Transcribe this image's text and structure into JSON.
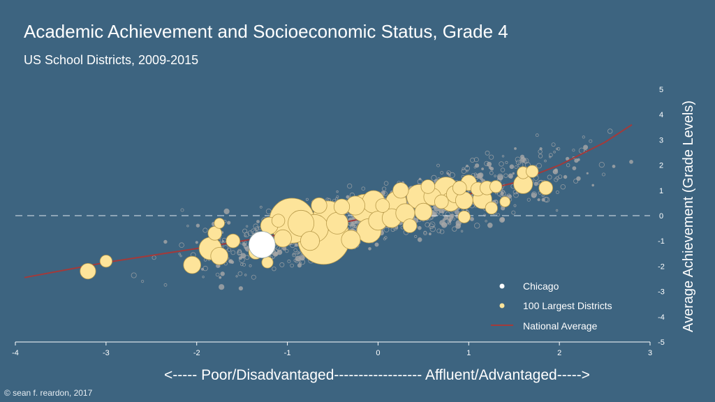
{
  "chart_data": {
    "type": "scatter",
    "title": "Academic Achievement and Socioeconomic Status, Grade 4",
    "subtitle": "US School Districts, 2009-2015",
    "xlabel": "<----- Poor/Disadvantaged------------------ Affluent/Advantaged----->",
    "ylabel": "Average Achievement (Grade Levels)",
    "xlim": [
      -4,
      3
    ],
    "ylim": [
      -5,
      5
    ],
    "x_ticks": [
      -4,
      -3,
      -2,
      -1,
      0,
      1,
      2,
      3
    ],
    "y_ticks": [
      5,
      4,
      3,
      2,
      1,
      0,
      -1,
      -2,
      -3,
      -4,
      -5
    ],
    "reference_line_y": 0,
    "legend_position": "bottom-right",
    "colors": {
      "background": "#3d6480",
      "all_districts": "#a8a8a8",
      "largest_districts": "#fde49a",
      "chicago": "#ffffff",
      "national_average": "#a33a3a"
    },
    "series": [
      {
        "name": "Chicago",
        "points": [
          {
            "x": -1.28,
            "y": -1.15,
            "size": 5
          }
        ]
      },
      {
        "name": "100 Largest Districts",
        "points": [
          {
            "x": -3.2,
            "y": -2.2,
            "size": 1.8
          },
          {
            "x": -3.0,
            "y": -1.8,
            "size": 1.4
          },
          {
            "x": -2.05,
            "y": -1.95,
            "size": 2.0
          },
          {
            "x": -1.85,
            "y": -1.3,
            "size": 2.6
          },
          {
            "x": -1.8,
            "y": -0.7,
            "size": 1.6
          },
          {
            "x": -1.75,
            "y": -1.6,
            "size": 2.0
          },
          {
            "x": -1.6,
            "y": -1.0,
            "size": 1.6
          },
          {
            "x": -1.75,
            "y": -0.3,
            "size": 1.2
          },
          {
            "x": -1.35,
            "y": -1.45,
            "size": 1.6
          },
          {
            "x": -1.2,
            "y": -0.4,
            "size": 2.0
          },
          {
            "x": -1.22,
            "y": -1.85,
            "size": 1.3
          },
          {
            "x": -1.05,
            "y": -0.9,
            "size": 2.0
          },
          {
            "x": -1.1,
            "y": -0.2,
            "size": 1.5
          },
          {
            "x": -0.95,
            "y": -0.2,
            "size": 5.2
          },
          {
            "x": -0.85,
            "y": -0.3,
            "size": 3.0
          },
          {
            "x": -0.75,
            "y": -1.0,
            "size": 2.2
          },
          {
            "x": -0.7,
            "y": -0.5,
            "size": 3.2
          },
          {
            "x": -0.6,
            "y": -0.9,
            "size": 6.0
          },
          {
            "x": -0.55,
            "y": 0.0,
            "size": 3.4
          },
          {
            "x": -0.45,
            "y": -0.3,
            "size": 2.5
          },
          {
            "x": -0.4,
            "y": 0.35,
            "size": 1.8
          },
          {
            "x": -0.3,
            "y": -0.95,
            "size": 2.2
          },
          {
            "x": -0.25,
            "y": 0.4,
            "size": 2.2
          },
          {
            "x": -0.15,
            "y": 0.3,
            "size": 3.2
          },
          {
            "x": -0.1,
            "y": -0.6,
            "size": 2.8
          },
          {
            "x": -0.05,
            "y": 0.55,
            "size": 2.6
          },
          {
            "x": 0.0,
            "y": -0.2,
            "size": 2.2
          },
          {
            "x": 0.05,
            "y": 0.4,
            "size": 1.6
          },
          {
            "x": 0.15,
            "y": -0.1,
            "size": 2.2
          },
          {
            "x": 0.25,
            "y": 1.0,
            "size": 1.8
          },
          {
            "x": 0.3,
            "y": 0.1,
            "size": 2.2
          },
          {
            "x": 0.35,
            "y": -0.4,
            "size": 1.6
          },
          {
            "x": 0.45,
            "y": 0.75,
            "size": 2.8
          },
          {
            "x": 0.5,
            "y": 0.15,
            "size": 2.0
          },
          {
            "x": 0.55,
            "y": 1.15,
            "size": 1.6
          },
          {
            "x": 0.6,
            "y": 0.75,
            "size": 2.0
          },
          {
            "x": 0.7,
            "y": 0.55,
            "size": 1.6
          },
          {
            "x": 0.75,
            "y": 1.05,
            "size": 2.8
          },
          {
            "x": 0.8,
            "y": 0.55,
            "size": 2.2
          },
          {
            "x": 0.85,
            "y": 0.85,
            "size": 2.0
          },
          {
            "x": 0.9,
            "y": 1.1,
            "size": 1.6
          },
          {
            "x": 0.95,
            "y": 0.6,
            "size": 2.0
          },
          {
            "x": 1.0,
            "y": 1.3,
            "size": 1.8
          },
          {
            "x": 0.95,
            "y": -0.05,
            "size": 1.4
          },
          {
            "x": 1.1,
            "y": 1.05,
            "size": 1.6
          },
          {
            "x": 1.15,
            "y": 0.65,
            "size": 2.2
          },
          {
            "x": 1.2,
            "y": 1.1,
            "size": 1.6
          },
          {
            "x": 1.25,
            "y": 0.3,
            "size": 1.4
          },
          {
            "x": 1.3,
            "y": 1.15,
            "size": 1.4
          },
          {
            "x": 1.4,
            "y": 0.55,
            "size": 1.2
          },
          {
            "x": 1.6,
            "y": 1.25,
            "size": 2.2
          },
          {
            "x": 1.6,
            "y": 1.7,
            "size": 1.4
          },
          {
            "x": 1.7,
            "y": 1.75,
            "size": 1.4
          },
          {
            "x": 1.85,
            "y": 1.1,
            "size": 1.6
          },
          {
            "x": -0.65,
            "y": 0.4,
            "size": 1.8
          },
          {
            "x": 0.2,
            "y": 0.55,
            "size": 2.4
          }
        ]
      },
      {
        "name": "National Average",
        "type": "line",
        "x": [
          -3.9,
          -3.0,
          -2.0,
          -1.0,
          0.0,
          1.0,
          1.5,
          2.0,
          2.5,
          2.8
        ],
        "y": [
          -2.45,
          -1.85,
          -1.3,
          -0.7,
          0.0,
          0.85,
          1.3,
          2.0,
          2.9,
          3.6
        ]
      }
    ],
    "legend": [
      "Chicago",
      "100 Largest Districts",
      "National Average"
    ]
  },
  "footer": {
    "copyright": "© sean f. reardon, 2017"
  }
}
